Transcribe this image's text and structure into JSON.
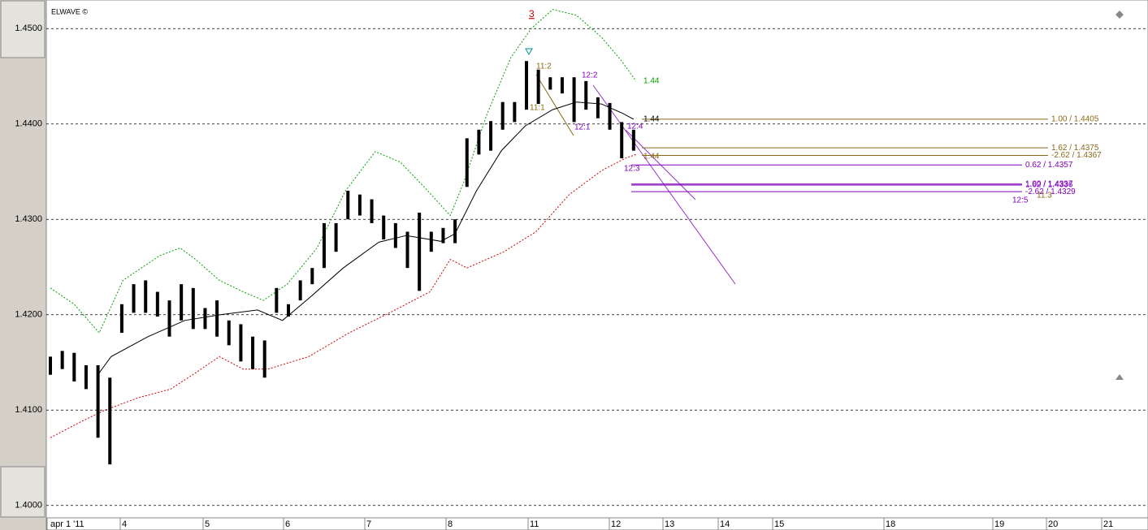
{
  "chart_data": {
    "type": "ohlc",
    "title": "ELWAVE ©",
    "color": "#000000",
    "x": [
      0,
      1,
      2,
      3,
      4,
      5,
      6,
      7,
      8,
      9,
      10,
      11,
      12,
      13,
      14,
      15,
      16,
      17,
      18,
      19,
      20,
      21,
      22,
      23,
      24,
      25,
      26,
      27,
      28,
      29,
      30,
      31,
      32,
      33,
      34,
      35,
      36,
      37,
      38,
      39,
      40,
      41,
      42,
      43,
      44,
      45,
      46,
      47,
      48,
      49
    ],
    "high": [
      1.4156,
      1.4162,
      1.416,
      1.4147,
      1.4147,
      1.4134,
      1.4211,
      1.4232,
      1.4236,
      1.4224,
      1.4215,
      1.4232,
      1.4228,
      1.4207,
      1.4215,
      1.4194,
      1.419,
      1.4177,
      1.4173,
      1.4228,
      1.4211,
      1.4236,
      1.4249,
      1.4296,
      1.4296,
      1.433,
      1.4326,
      1.4321,
      1.4304,
      1.4296,
      1.4287,
      1.4307,
      1.4287,
      1.4291,
      1.43,
      1.4385,
      1.4394,
      1.4403,
      1.4423,
      1.4423,
      1.4466,
      1.4457,
      1.4449,
      1.4449,
      1.4449,
      1.4445,
      1.4428,
      1.4422,
      1.4402,
      1.4394
    ],
    "low": [
      1.4137,
      1.4143,
      1.413,
      1.4122,
      1.4071,
      1.4043,
      1.4181,
      1.4202,
      1.4202,
      1.4198,
      1.4177,
      1.4194,
      1.4185,
      1.4185,
      1.4177,
      1.4168,
      1.4151,
      1.4143,
      1.4134,
      1.4202,
      1.4198,
      1.4215,
      1.4232,
      1.4249,
      1.4266,
      1.43,
      1.4304,
      1.4296,
      1.4279,
      1.427,
      1.4249,
      1.4225,
      1.4266,
      1.4275,
      1.4275,
      1.4334,
      1.4368,
      1.4372,
      1.4394,
      1.4402,
      1.4415,
      1.4421,
      1.4436,
      1.4432,
      1.4402,
      1.4415,
      1.4406,
      1.4394,
      1.4364,
      1.4372
    ],
    "overlays": [
      {
        "color": "#000000",
        "dash": false,
        "x": [
          4.1,
          5.1,
          8.2,
          11.3,
          14.3,
          17.4,
          19.5,
          21.7,
          24.6,
          27.6,
          29.9,
          32.8,
          34,
          35.8,
          37.9,
          39.9,
          42.2,
          44.2,
          46.3,
          48.1,
          49.0
        ],
        "values": [
          1.4139,
          1.4156,
          1.4177,
          1.4194,
          1.42,
          1.4205,
          1.4194,
          1.4217,
          1.4249,
          1.4276,
          1.4283,
          1.4277,
          1.4285,
          1.433,
          1.4372,
          1.4398,
          1.4415,
          1.4423,
          1.4421,
          1.4411,
          1.4405
        ]
      },
      {
        "color": "#00a000",
        "dash": true,
        "x": [
          0,
          2,
          4.1,
          6.1,
          9.2,
          10.9,
          12.2,
          14.2,
          16.2,
          17.9,
          19.9,
          22.4,
          24.8,
          27.3,
          29.4,
          31.4,
          33.6,
          34.7,
          36.7,
          38.7,
          40.4,
          42.2,
          44.2,
          46.3,
          48,
          49.2
        ],
        "values": [
          1.4228,
          1.4211,
          1.4181,
          1.4236,
          1.4262,
          1.427,
          1.4258,
          1.4236,
          1.4224,
          1.4215,
          1.4232,
          1.427,
          1.433,
          1.4371,
          1.436,
          1.4334,
          1.4304,
          1.4338,
          1.4411,
          1.447,
          1.45,
          1.452,
          1.4514,
          1.4491,
          1.4466,
          1.4445
        ]
      },
      {
        "color": "#d00000",
        "dash": true,
        "x": [
          0,
          2.6,
          4.6,
          7.4,
          10.1,
          12.2,
          14.2,
          16.2,
          18.3,
          21.7,
          25.1,
          28.5,
          31.9,
          33.6,
          35,
          38.1,
          40.8,
          43.6,
          46.3,
          48.3,
          49.2
        ],
        "values": [
          1.4071,
          1.4088,
          1.41,
          1.4113,
          1.4122,
          1.4139,
          1.4156,
          1.4143,
          1.4143,
          1.4156,
          1.4181,
          1.4202,
          1.4224,
          1.4258,
          1.4249,
          1.4266,
          1.4287,
          1.4326,
          1.4351,
          1.4364,
          1.4368
        ]
      }
    ],
    "levels": [
      {
        "value": 1.4405,
        "label": "1.00 / 1.4405",
        "color": "#8b6914"
      },
      {
        "value": 1.4375,
        "label": "1.62 / 1.4375",
        "color": "#8b6914"
      },
      {
        "value": 1.4367,
        "label": "-2.62 / 1.4367",
        "color": "#8b6914"
      },
      {
        "value": 1.4357,
        "label": "0.62 / 1.4357",
        "color": "#8000c0"
      },
      {
        "value": 1.4337,
        "label": "1.00 / 1.4337",
        "color": "#8000c0"
      },
      {
        "value": 1.4336,
        "label": "1.62 / 1.4336",
        "color": "#8000c0"
      },
      {
        "value": 1.4329,
        "label": "-2.62 / 1.4329",
        "color": "#8000c0"
      }
    ],
    "annotations": [
      {
        "text": "3",
        "color": "#c00000"
      },
      {
        "text": "1.44",
        "color": "#00a000"
      },
      {
        "text": "1.44",
        "color": "#000000"
      },
      {
        "text": "1.44",
        "color": "#8b6914"
      },
      {
        "text": "11:2",
        "color": "#8b6914"
      },
      {
        "text": "11:1",
        "color": "#8b6914"
      },
      {
        "text": "12:2",
        "color": "#8000c0"
      },
      {
        "text": "12:1",
        "color": "#8000c0"
      },
      {
        "text": "12:4",
        "color": "#8000c0"
      },
      {
        "text": "12:3",
        "color": "#8000c0"
      },
      {
        "text": "12:5",
        "color": "#8000c0"
      },
      {
        "text": "11:3",
        "color": "#8b6914"
      }
    ],
    "x_labels": [
      "apr 1 '11",
      "4",
      "5",
      "6",
      "7",
      "8",
      "11",
      "12",
      "13",
      "14",
      "15",
      "18",
      "19",
      "20",
      "21"
    ],
    "ylim": [
      1.3987,
      1.453
    ],
    "yticks": [
      {
        "value": 1.4,
        "label": "1.4000"
      },
      {
        "value": 1.41,
        "label": "1.4100"
      },
      {
        "value": 1.42,
        "label": "1.4200"
      },
      {
        "value": 1.43,
        "label": "1.4300"
      },
      {
        "value": 1.44,
        "label": "1.4400"
      },
      {
        "value": 1.45,
        "label": "1.4500"
      }
    ],
    "grid": true
  }
}
